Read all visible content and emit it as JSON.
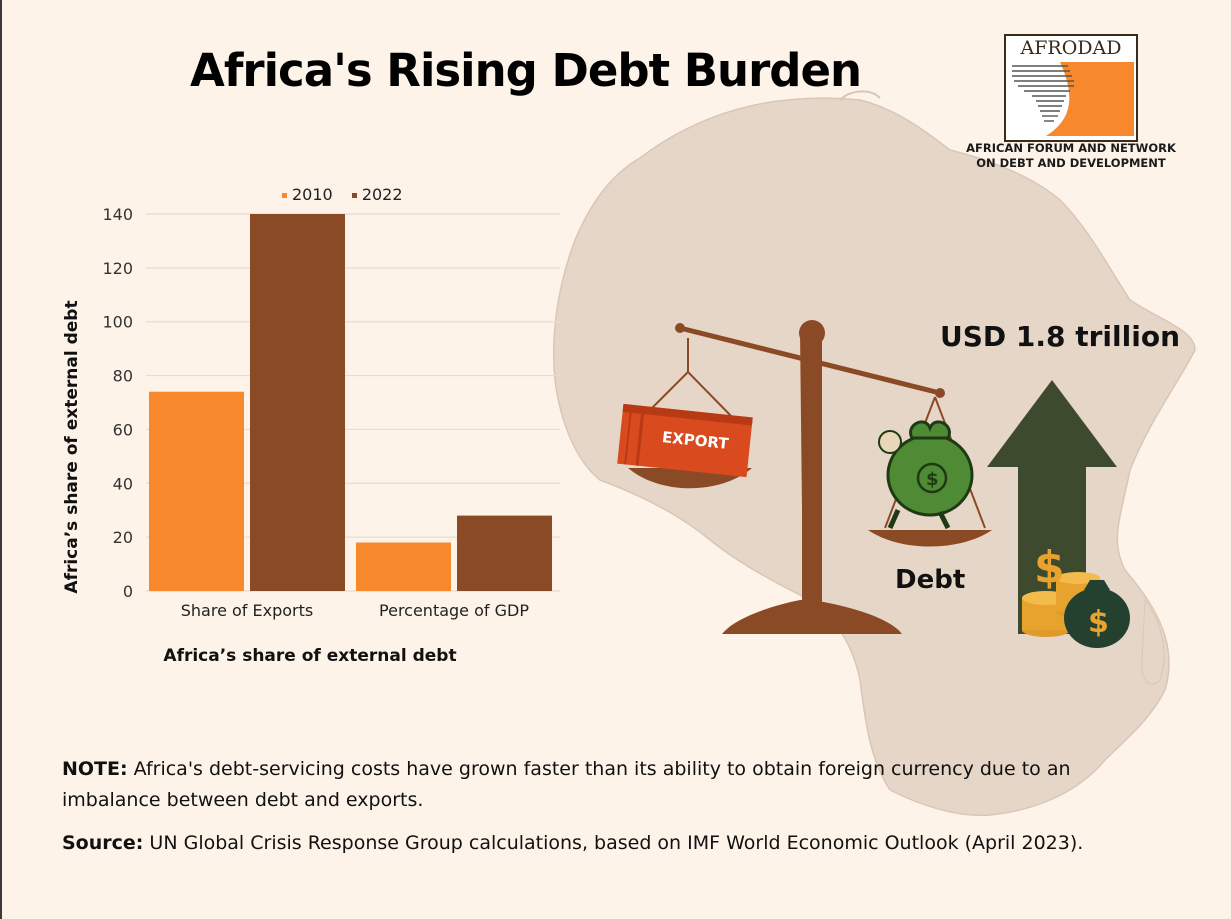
{
  "title": "Africa's Rising Debt Burden",
  "logo": {
    "name": "AFRODAD",
    "subtitle_line1": "AFRICAN FORUM AND NETWORK",
    "subtitle_line2": "ON DEBT AND DEVELOPMENT"
  },
  "illustration": {
    "usd_label": "USD 1.8 trillion",
    "container_label": "EXPORT",
    "debt_label": "Debt",
    "icons": [
      "africa-map-icon",
      "balance-scale-icon",
      "export-container-icon",
      "money-bag-icon",
      "up-arrow-icon",
      "coin-stack-icon"
    ]
  },
  "colors": {
    "background": "#fdf3e9",
    "series_2010": "#f7882b",
    "series_2022": "#8b4a26",
    "map": "#e6d6c8",
    "arrow": "#3e4a2e"
  },
  "chart_data": {
    "type": "bar",
    "categories": [
      "Share of Exports",
      "Percentage of GDP"
    ],
    "series": [
      {
        "name": "2010",
        "values": [
          74,
          18
        ],
        "color": "#f7882b"
      },
      {
        "name": "2022",
        "values": [
          140,
          28
        ],
        "color": "#8b4a26"
      }
    ],
    "ylim": [
      0,
      140
    ],
    "yticks": [
      0,
      20,
      40,
      60,
      80,
      100,
      120,
      140
    ],
    "ylabel": "Africa’s share of external debt",
    "xlabel": "Africa’s share of external debt",
    "legend_position": "top",
    "grid": true
  },
  "note": {
    "label": "NOTE:",
    "text": " Africa's debt-servicing costs have grown faster than its ability to obtain foreign currency due to an imbalance between debt and exports."
  },
  "source": {
    "label": "Source:",
    "text": " UN Global Crisis Response Group calculations, based on IMF World Economic Outlook (April 2023)."
  }
}
